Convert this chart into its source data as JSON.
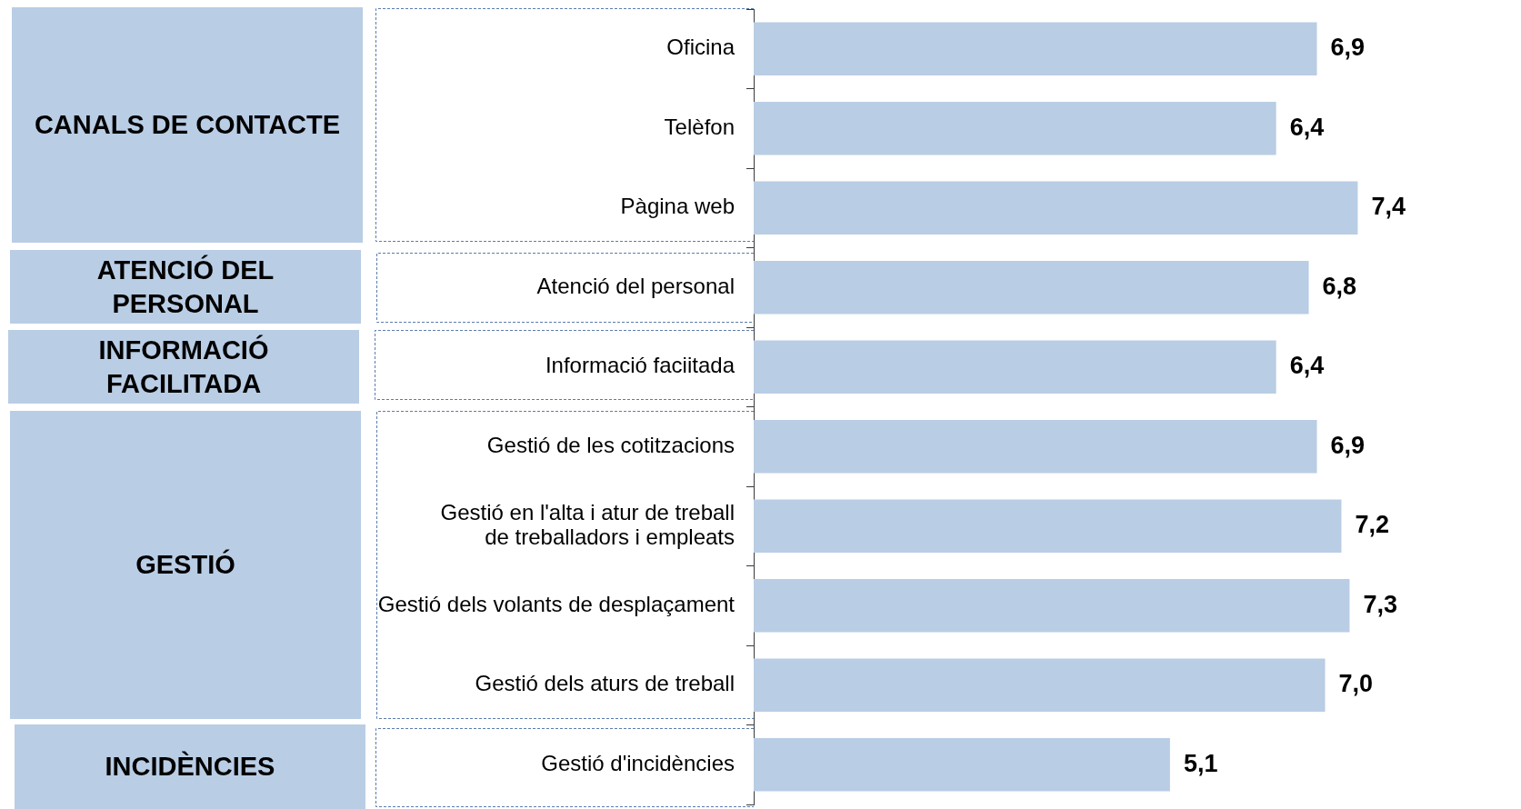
{
  "chart_data": {
    "type": "bar",
    "orientation": "horizontal",
    "categories": [
      "Oficina",
      "Telèfon",
      "Pàgina web",
      "Atenció del personal",
      "Informació faciitada",
      "Gestió de les cotitzacions",
      "Gestió en l'alta i atur de treball de treballadors i empleats",
      "Gestió dels volants de desplaçament",
      "Gestió dels aturs de treball",
      "Gestió d'incidències"
    ],
    "values": [
      6.9,
      6.4,
      7.4,
      6.8,
      6.4,
      6.9,
      7.2,
      7.3,
      7.0,
      5.1
    ],
    "value_labels": [
      "6,9",
      "6,4",
      "7,4",
      "6,8",
      "6,4",
      "6,9",
      "7,2",
      "7,3",
      "7,0",
      "5,1"
    ],
    "color": "#b9cde5",
    "xlim": [
      0,
      9.4
    ],
    "tick_labels": "y",
    "annotations": [
      "CANALS DE CONTACTE",
      "ATENCIÓ DEL PERSONAL",
      "INFORMACIÓ FACILITADA",
      "GESTIÓ",
      "INCIDÈNCIES"
    ]
  }
}
